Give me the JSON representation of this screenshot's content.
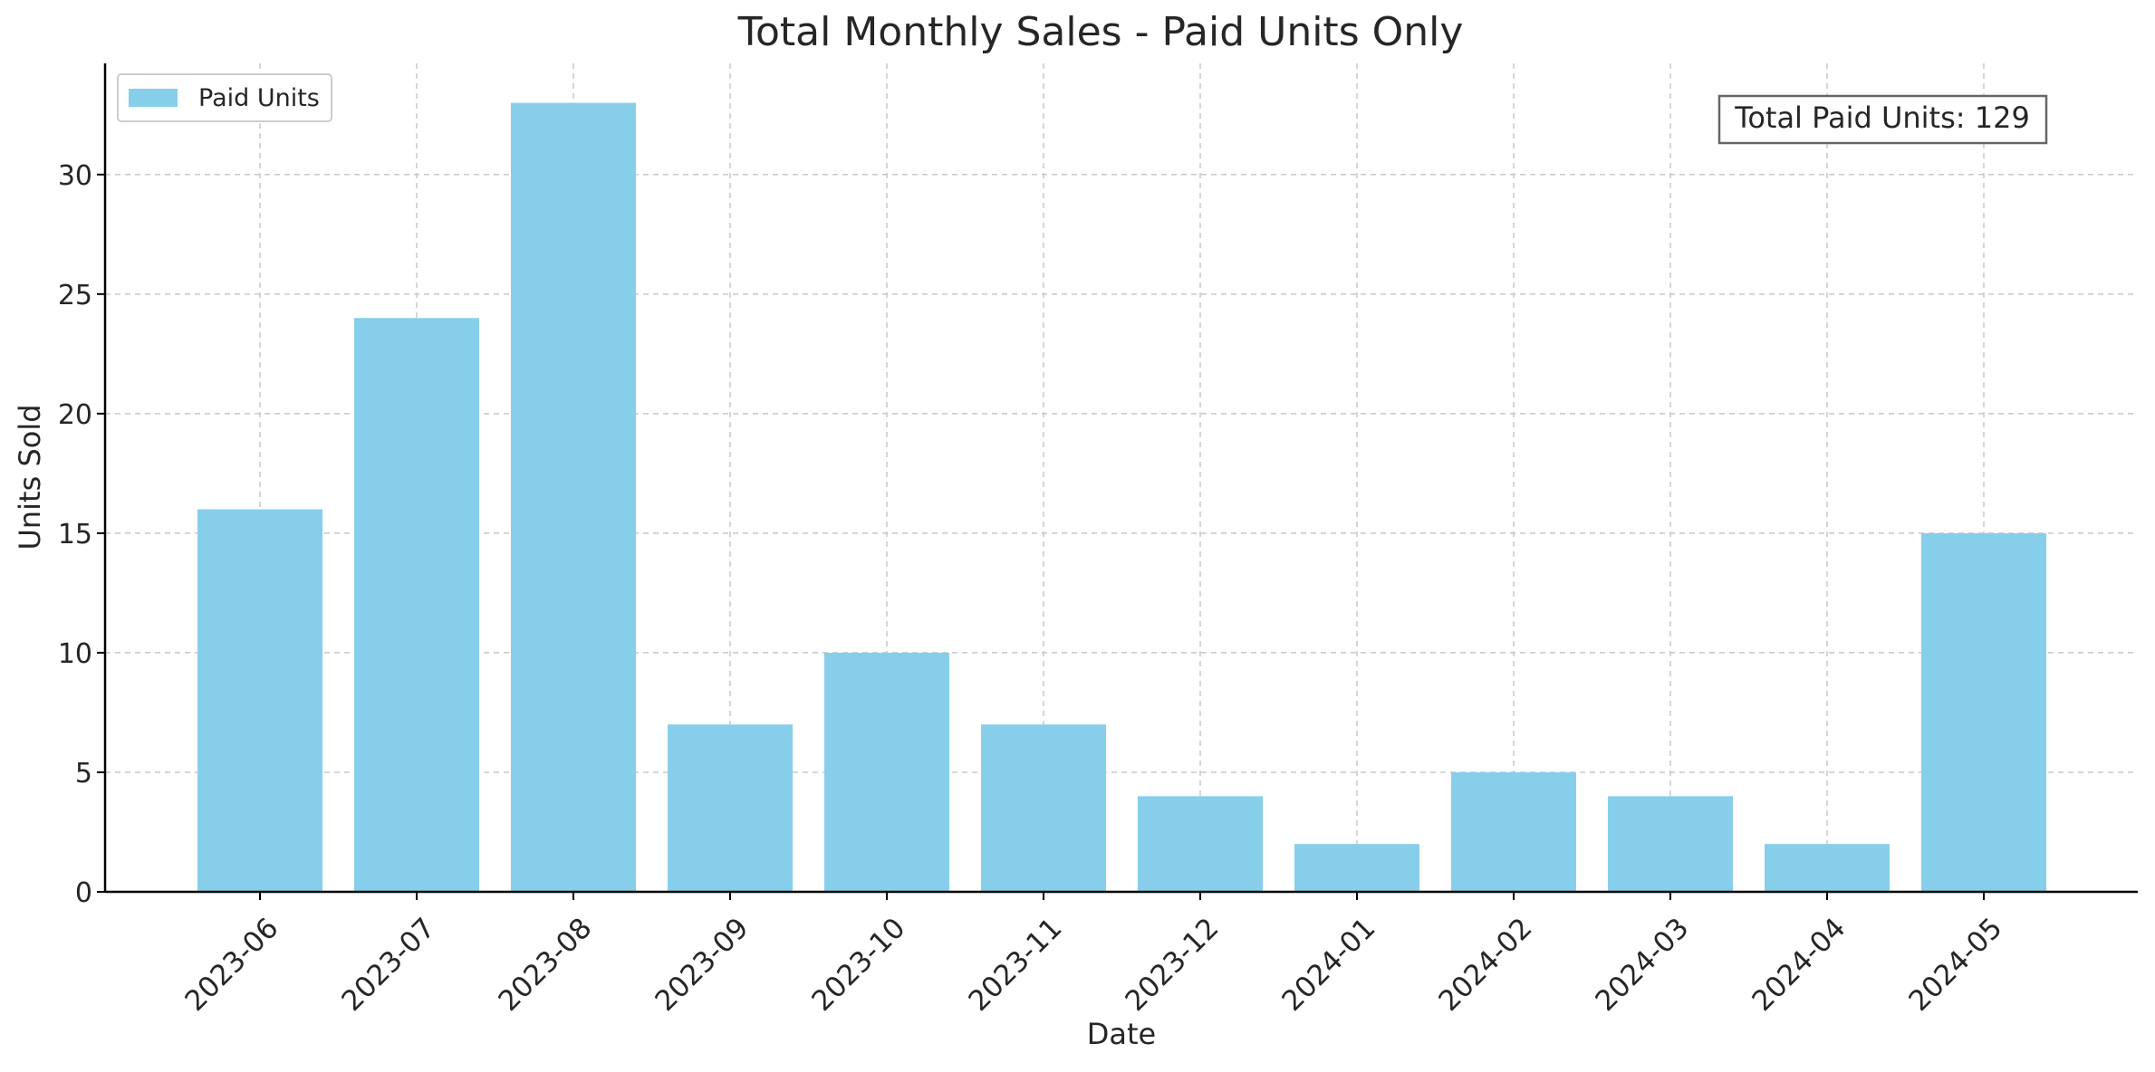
{
  "chart_data": {
    "type": "bar",
    "title": "Total Monthly Sales - Paid Units Only",
    "xlabel": "Date",
    "ylabel": "Units Sold",
    "categories": [
      "2023-06",
      "2023-07",
      "2023-08",
      "2023-09",
      "2023-10",
      "2023-11",
      "2023-12",
      "2024-01",
      "2024-02",
      "2024-03",
      "2024-04",
      "2024-05"
    ],
    "series": [
      {
        "name": "Paid Units",
        "values": [
          16,
          24,
          33,
          7,
          10,
          7,
          4,
          2,
          5,
          4,
          2,
          15
        ],
        "color": "#87CEEB"
      }
    ],
    "ylim": [
      0,
      34.65
    ],
    "yticks": [
      0,
      5,
      10,
      15,
      20,
      25,
      30
    ],
    "grid": true,
    "legend_position": "top-left",
    "annotation": "Total Paid Units: 129"
  }
}
